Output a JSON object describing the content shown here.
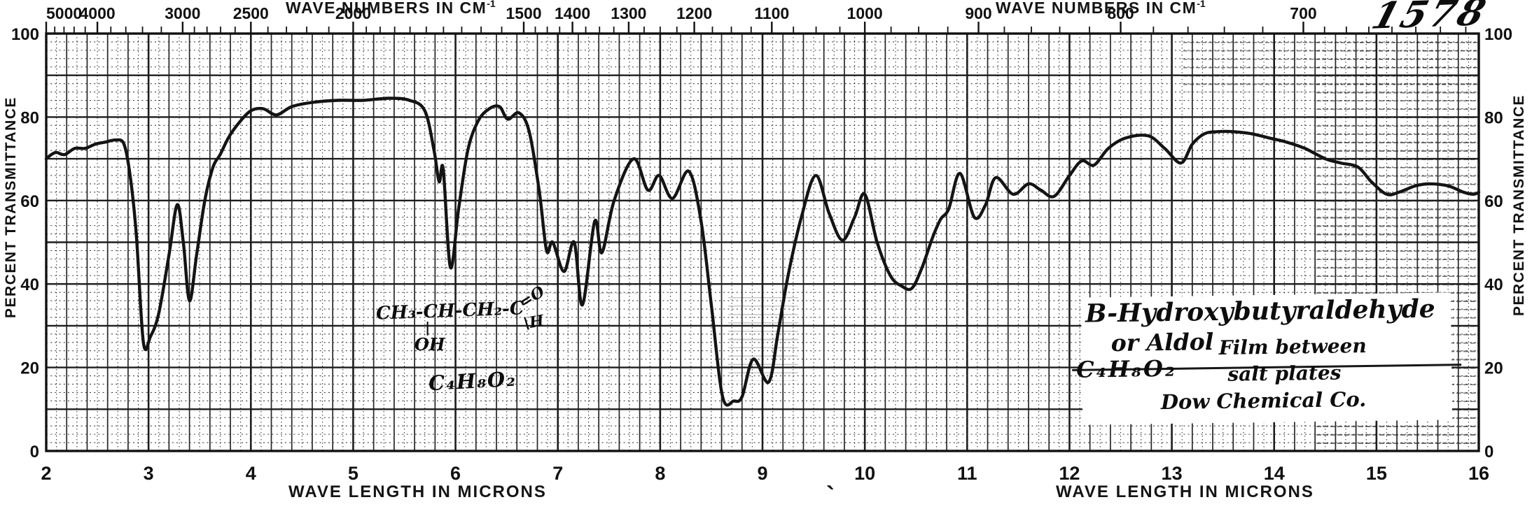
{
  "document": {
    "catalog_number": "1578",
    "top_axis_title": "WAVE NUMBERS IN CM",
    "top_axis_title_sup": "-1",
    "bottom_axis_title": "WAVE LENGTH IN MICRONS",
    "y_axis_title": "PERCENT TRANSMITTANCE",
    "stray_mark": "`"
  },
  "annotations": {
    "structure": {
      "chain": "CH₃-CH-CH₂-C",
      "carbonyl_top": "=O",
      "carbonyl_bottom": "\\H",
      "oh_bond": "|",
      "hydroxyl": "OH",
      "molecular_formula": "C₄H₈O₂"
    },
    "sample_box": {
      "name": "B-Hydroxybutyraldehyde",
      "alt_name": "or Aldol",
      "formula": "C₄H₈O₂",
      "preparation_line1": "Film between",
      "preparation_line2": "salt plates",
      "source": "Dow Chemical Co."
    }
  },
  "chart_data": {
    "type": "line",
    "title": "Infrared spectrum of B-Hydroxybutyraldehyde (Aldol), film between salt plates, Dow Chemical Co.",
    "xlabel": "WAVE LENGTH IN MICRONS",
    "ylabel": "PERCENT TRANSMITTANCE",
    "top_axis_label": "WAVE NUMBERS IN CM-1",
    "xlim": [
      2,
      16
    ],
    "ylim": [
      0,
      100
    ],
    "grid": "on",
    "x_ticks": [
      2,
      3,
      4,
      5,
      6,
      7,
      8,
      9,
      10,
      11,
      12,
      13,
      14,
      15,
      16
    ],
    "y_ticks": [
      0,
      20,
      40,
      60,
      80,
      100
    ],
    "top_axis": {
      "major_ticks": [
        5000,
        4000,
        3000,
        2500,
        2000,
        1500,
        1400,
        1300,
        1200,
        1100,
        1000,
        900,
        800,
        700
      ],
      "minor_ticks": [
        4800,
        4600,
        4400,
        4200,
        3800,
        3600,
        3400,
        3200,
        2900,
        2800,
        2700,
        2600,
        2400,
        2300,
        2200,
        2100,
        1950,
        1900,
        1850,
        1800,
        1750,
        1700,
        1650,
        1600,
        1550,
        1475,
        1450,
        1425,
        1375,
        1350,
        1325,
        1275,
        1250,
        1225,
        1175,
        1150,
        1125,
        1075,
        1050,
        1025,
        975,
        950,
        925,
        880,
        860,
        840,
        820,
        780,
        760,
        740,
        720,
        690,
        680,
        670,
        660,
        650,
        640,
        630
      ]
    },
    "series": [
      {
        "name": "percent transmittance",
        "x_unit": "microns",
        "points": [
          [
            2.0,
            70
          ],
          [
            2.05,
            71
          ],
          [
            2.1,
            71.5
          ],
          [
            2.18,
            71
          ],
          [
            2.28,
            72.5
          ],
          [
            2.38,
            72.5
          ],
          [
            2.48,
            73.5
          ],
          [
            2.58,
            74
          ],
          [
            2.68,
            74.5
          ],
          [
            2.76,
            73.5
          ],
          [
            2.82,
            66
          ],
          [
            2.88,
            52
          ],
          [
            2.95,
            26
          ],
          [
            3.02,
            27.5
          ],
          [
            3.1,
            33
          ],
          [
            3.2,
            47
          ],
          [
            3.28,
            59
          ],
          [
            3.34,
            50
          ],
          [
            3.4,
            36
          ],
          [
            3.47,
            47
          ],
          [
            3.55,
            60
          ],
          [
            3.63,
            68
          ],
          [
            3.7,
            71
          ],
          [
            3.78,
            75
          ],
          [
            3.88,
            78.5
          ],
          [
            4.0,
            81.5
          ],
          [
            4.12,
            82
          ],
          [
            4.25,
            80.5
          ],
          [
            4.4,
            82.5
          ],
          [
            4.6,
            83.5
          ],
          [
            4.85,
            84
          ],
          [
            5.1,
            84
          ],
          [
            5.35,
            84.5
          ],
          [
            5.55,
            84
          ],
          [
            5.7,
            81.5
          ],
          [
            5.79,
            72
          ],
          [
            5.84,
            64.5
          ],
          [
            5.88,
            67.5
          ],
          [
            5.95,
            44
          ],
          [
            6.03,
            58
          ],
          [
            6.12,
            72
          ],
          [
            6.22,
            79
          ],
          [
            6.33,
            82
          ],
          [
            6.43,
            82.5
          ],
          [
            6.51,
            79.5
          ],
          [
            6.62,
            81
          ],
          [
            6.72,
            76.5
          ],
          [
            6.82,
            62
          ],
          [
            6.89,
            48
          ],
          [
            6.95,
            50
          ],
          [
            7.06,
            43
          ],
          [
            7.16,
            50
          ],
          [
            7.24,
            35
          ],
          [
            7.36,
            55
          ],
          [
            7.43,
            47.5
          ],
          [
            7.55,
            60
          ],
          [
            7.74,
            70
          ],
          [
            7.88,
            62.5
          ],
          [
            7.99,
            66
          ],
          [
            8.12,
            60.5
          ],
          [
            8.28,
            67
          ],
          [
            8.4,
            55
          ],
          [
            8.5,
            35
          ],
          [
            8.61,
            13
          ],
          [
            8.72,
            12
          ],
          [
            8.8,
            13
          ],
          [
            8.91,
            22
          ],
          [
            9.06,
            16.5
          ],
          [
            9.15,
            28
          ],
          [
            9.25,
            42
          ],
          [
            9.38,
            56
          ],
          [
            9.52,
            66
          ],
          [
            9.65,
            57
          ],
          [
            9.78,
            50.5
          ],
          [
            9.9,
            56
          ],
          [
            10.0,
            61.5
          ],
          [
            10.12,
            50
          ],
          [
            10.25,
            42
          ],
          [
            10.36,
            39.5
          ],
          [
            10.46,
            39
          ],
          [
            10.56,
            44
          ],
          [
            10.66,
            51
          ],
          [
            10.74,
            55.5
          ],
          [
            10.82,
            58
          ],
          [
            10.93,
            66.5
          ],
          [
            11.07,
            56
          ],
          [
            11.18,
            59
          ],
          [
            11.28,
            65.5
          ],
          [
            11.45,
            61.5
          ],
          [
            11.6,
            64
          ],
          [
            11.72,
            62.5
          ],
          [
            11.85,
            61
          ],
          [
            12.0,
            66
          ],
          [
            12.12,
            69.5
          ],
          [
            12.24,
            68.5
          ],
          [
            12.38,
            72.5
          ],
          [
            12.55,
            75
          ],
          [
            12.77,
            75.5
          ],
          [
            12.93,
            72.5
          ],
          [
            13.09,
            69
          ],
          [
            13.2,
            73.5
          ],
          [
            13.32,
            76
          ],
          [
            13.45,
            76.5
          ],
          [
            13.6,
            76.5
          ],
          [
            13.78,
            76
          ],
          [
            13.95,
            75
          ],
          [
            14.12,
            74
          ],
          [
            14.3,
            72.5
          ],
          [
            14.5,
            70
          ],
          [
            14.65,
            69
          ],
          [
            14.82,
            68
          ],
          [
            14.95,
            64.5
          ],
          [
            15.1,
            61.5
          ],
          [
            15.22,
            62
          ],
          [
            15.38,
            63.5
          ],
          [
            15.52,
            64
          ],
          [
            15.7,
            63.5
          ],
          [
            15.85,
            62
          ],
          [
            15.95,
            61.5
          ],
          [
            16.0,
            62
          ]
        ]
      }
    ],
    "colors": {
      "curve": "#141414",
      "grid_major": "#1d1d1d",
      "grid_minor": "#3a3a3a",
      "paper": "#ffffff"
    }
  }
}
